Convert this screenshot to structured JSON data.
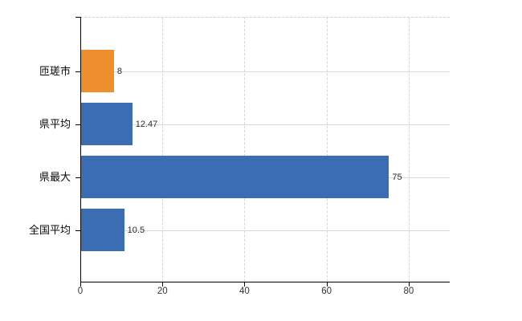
{
  "chart_data": {
    "type": "bar",
    "orientation": "horizontal",
    "title": "",
    "categories": [
      "匝瑳市",
      "県平均",
      "県最大",
      "全国平均"
    ],
    "values": [
      8,
      12.47,
      75,
      10.5
    ],
    "value_labels": [
      "8",
      "12.47",
      "75",
      "10.5"
    ],
    "bar_colors": [
      "#ee8e2c",
      "#3a6db1",
      "#3a6db1",
      "#3a6db1"
    ],
    "x_tick_values": [
      0,
      20,
      40,
      60,
      80
    ],
    "x_tick_labels": [
      "0",
      "20",
      "40",
      "60",
      "80"
    ],
    "xlim": [
      0,
      90
    ],
    "xlabel": "",
    "ylabel": "",
    "grid": "on",
    "legend_position": "none",
    "colors": {
      "highlight_bar": "#ee8e2c",
      "default_bar": "#3a6db1",
      "axis": "#000000",
      "gridline": "#d8d8d8",
      "background": "#ffffff"
    }
  }
}
